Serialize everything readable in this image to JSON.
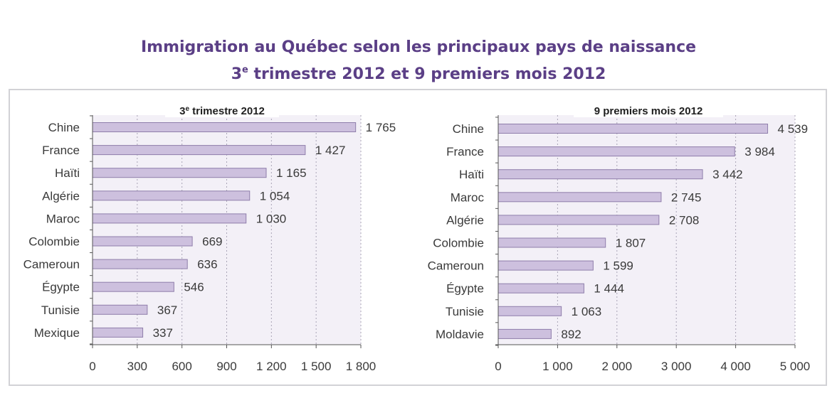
{
  "page": {
    "title_line1": "Immigration au Québec selon les principaux pays de naissance",
    "title_line2_num": "3",
    "title_line2_sup": "e",
    "title_line2_rest": " trimestre 2012 et 9 premiers mois 2012"
  },
  "chart_data": [
    {
      "type": "bar",
      "orientation": "horizontal",
      "title": "3e trimestre 2012",
      "title_num": "3",
      "title_sup": "e",
      "title_rest": " trimestre 2012",
      "categories": [
        "Chine",
        "France",
        "Haïti",
        "Algérie",
        "Maroc",
        "Colombie",
        "Cameroun",
        "Égypte",
        "Tunisie",
        "Mexique"
      ],
      "values": [
        1765,
        1427,
        1165,
        1054,
        1030,
        669,
        636,
        546,
        367,
        337
      ],
      "value_labels": [
        "1 765",
        "1 427",
        "1 165",
        "1 054",
        "1 030",
        "669",
        "636",
        "546",
        "367",
        "337"
      ],
      "xlim": [
        0,
        1800
      ],
      "xticks": [
        0,
        300,
        600,
        900,
        1200,
        1500,
        1800
      ],
      "xtick_labels": [
        "0",
        "300",
        "600",
        "900",
        "1 200",
        "1 500",
        "1 800"
      ],
      "grid": "vertical dashed",
      "colors": {
        "bar": "#cdc0de",
        "bar_stroke": "#8f7eab",
        "plot_bg": "#f3f0f7"
      }
    },
    {
      "type": "bar",
      "orientation": "horizontal",
      "title": "9 premiers mois 2012",
      "categories": [
        "Chine",
        "France",
        "Haïti",
        "Maroc",
        "Algérie",
        "Colombie",
        "Cameroun",
        "Égypte",
        "Tunisie",
        "Moldavie"
      ],
      "values": [
        4539,
        3984,
        3442,
        2745,
        2708,
        1807,
        1599,
        1444,
        1063,
        892
      ],
      "value_labels": [
        "4 539",
        "3 984",
        "3 442",
        "2 745",
        "2 708",
        "1 807",
        "1 599",
        "1 444",
        "1 063",
        "892"
      ],
      "xlim": [
        0,
        5000
      ],
      "xticks": [
        0,
        1000,
        2000,
        3000,
        4000,
        5000
      ],
      "xtick_labels": [
        "0",
        "1 000",
        "2 000",
        "3 000",
        "4 000",
        "5 000"
      ],
      "grid": "vertical dashed",
      "colors": {
        "bar": "#cdc0de",
        "bar_stroke": "#8f7eab",
        "plot_bg": "#f3f0f7"
      }
    }
  ]
}
